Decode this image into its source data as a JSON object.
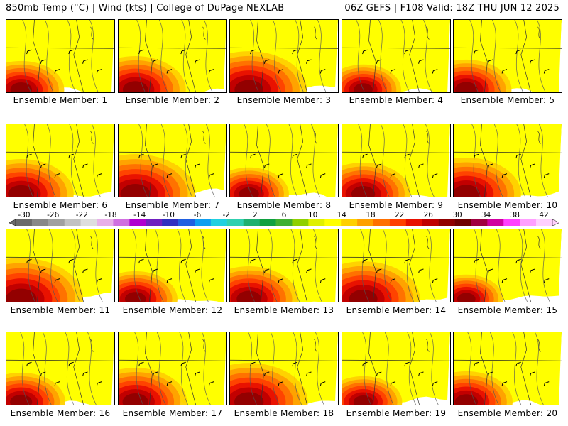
{
  "header": {
    "left_title": "850mb Temp (°C) | Wind (kts) | College of DuPage NEXLAB",
    "right_title": "06Z GEFS | F108 Valid: 18Z THU JUN 12 2025"
  },
  "colorbar": {
    "ticks": [
      "-30",
      "-26",
      "-22",
      "-18",
      "-14",
      "-10",
      "-6",
      "-2",
      "2",
      "6",
      "10",
      "14",
      "18",
      "22",
      "26",
      "30",
      "34",
      "38",
      "42"
    ],
    "colors": [
      "#6a6a6a",
      "#888888",
      "#a0a0a0",
      "#c2c2c2",
      "#dedede",
      "#e8b0e8",
      "#d070e0",
      "#b000d0",
      "#7020c0",
      "#3030c0",
      "#2060e0",
      "#10a0f0",
      "#20d0e0",
      "#30d0b0",
      "#20b070",
      "#10a040",
      "#40b030",
      "#90d000",
      "#e0f000",
      "#ffff00",
      "#ffd000",
      "#ffa000",
      "#ff7000",
      "#ff4000",
      "#e81000",
      "#c00000",
      "#900000",
      "#700000",
      "#a00040",
      "#d000a0",
      "#ff40ff",
      "#ffa0ff",
      "#ffd0ff"
    ]
  },
  "members": [
    {
      "label": "Ensemble Member: 1"
    },
    {
      "label": "Ensemble Member: 2"
    },
    {
      "label": "Ensemble Member: 3"
    },
    {
      "label": "Ensemble Member: 4"
    },
    {
      "label": "Ensemble Member: 5"
    },
    {
      "label": "Ensemble Member: 6"
    },
    {
      "label": "Ensemble Member: 7"
    },
    {
      "label": "Ensemble Member: 8"
    },
    {
      "label": "Ensemble Member: 9"
    },
    {
      "label": "Ensemble Member: 10"
    },
    {
      "label": "Ensemble Member: 11"
    },
    {
      "label": "Ensemble Member: 12"
    },
    {
      "label": "Ensemble Member: 13"
    },
    {
      "label": "Ensemble Member: 14"
    },
    {
      "label": "Ensemble Member: 15"
    },
    {
      "label": "Ensemble Member: 16"
    },
    {
      "label": "Ensemble Member: 17"
    },
    {
      "label": "Ensemble Member: 18"
    },
    {
      "label": "Ensemble Member: 19"
    },
    {
      "label": "Ensemble Member: 20"
    }
  ]
}
